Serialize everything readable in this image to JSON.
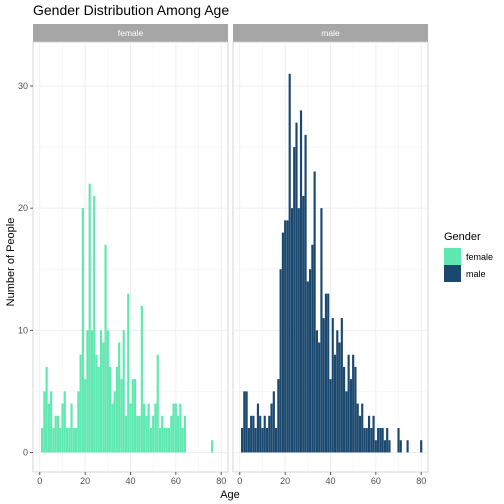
{
  "chart_data": {
    "type": "bar",
    "title": "Gender Distribution Among Age",
    "xlabel": "Age",
    "ylabel": "Number of People",
    "xlim": [
      -3,
      83
    ],
    "ylim": [
      -1.6,
      33.6
    ],
    "x_ticks": [
      0,
      20,
      40,
      60,
      80
    ],
    "y_ticks": [
      0,
      10,
      20,
      30
    ],
    "grid": true,
    "legend": {
      "title": "Gender",
      "placement": "right",
      "entries": [
        {
          "label": "female",
          "color": "#5fe8b0"
        },
        {
          "label": "male",
          "color": "#1b486e"
        }
      ]
    },
    "facets": [
      {
        "strip": "female",
        "color": "#5fe8b0",
        "x": [
          1,
          2,
          3,
          4,
          5,
          6,
          7,
          8,
          9,
          10,
          11,
          12,
          13,
          14,
          15,
          16,
          17,
          18,
          19,
          20,
          21,
          22,
          23,
          24,
          25,
          26,
          27,
          28,
          29,
          30,
          31,
          32,
          33,
          34,
          35,
          36,
          37,
          38,
          39,
          40,
          41,
          42,
          43,
          44,
          45,
          46,
          47,
          48,
          49,
          50,
          51,
          52,
          53,
          54,
          55,
          56,
          57,
          58,
          59,
          60,
          61,
          62,
          63,
          64,
          76
        ],
        "values": [
          2,
          5,
          7,
          4,
          5,
          2,
          3,
          3,
          2,
          4,
          5,
          2,
          2,
          4,
          2,
          2,
          5,
          8,
          20,
          6,
          10,
          22,
          10,
          21,
          8,
          7,
          10,
          9,
          17,
          10,
          7,
          4,
          5,
          7,
          9,
          6,
          10,
          3,
          13,
          4,
          6,
          6,
          3,
          3,
          12,
          4,
          3,
          4,
          2,
          3,
          4,
          8,
          2,
          3,
          2,
          2,
          2,
          3,
          4,
          4,
          3,
          4,
          2,
          3,
          1
        ]
      },
      {
        "strip": "male",
        "color": "#1b486e",
        "x": [
          1,
          2,
          3,
          4,
          5,
          6,
          7,
          8,
          9,
          10,
          11,
          12,
          13,
          14,
          15,
          16,
          17,
          18,
          19,
          20,
          21,
          22,
          23,
          24,
          25,
          26,
          27,
          28,
          29,
          30,
          31,
          32,
          33,
          34,
          35,
          36,
          37,
          38,
          39,
          40,
          41,
          42,
          43,
          44,
          45,
          46,
          47,
          48,
          49,
          50,
          51,
          52,
          53,
          54,
          55,
          56,
          57,
          58,
          59,
          60,
          61,
          62,
          63,
          64,
          65,
          66,
          70,
          71,
          74,
          80
        ],
        "values": [
          2,
          5,
          5,
          2,
          3,
          3,
          2,
          4,
          3,
          2,
          3,
          2,
          3,
          4,
          5,
          2,
          6,
          15,
          18,
          19,
          19,
          31,
          20,
          25,
          27,
          20,
          28,
          21,
          26,
          14,
          15,
          17,
          23,
          10,
          9,
          20,
          11,
          13,
          13,
          6,
          11,
          8,
          10,
          9,
          11,
          7,
          5,
          8,
          6,
          8,
          7,
          4,
          3,
          4,
          2,
          2,
          3,
          2,
          3,
          1,
          2,
          2,
          2,
          1,
          2,
          1,
          2,
          1,
          1,
          1
        ]
      }
    ]
  }
}
